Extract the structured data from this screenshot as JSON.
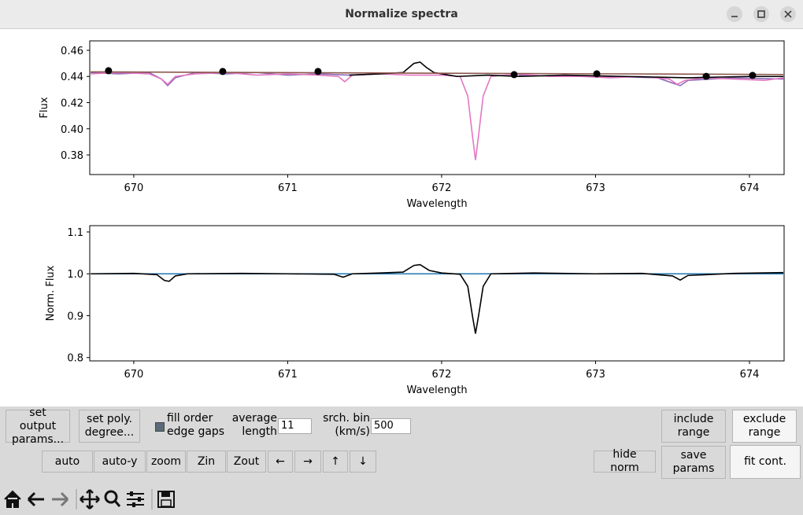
{
  "window": {
    "title": "Normalize spectra"
  },
  "chart_data": [
    {
      "type": "line",
      "ylabel": "Flux",
      "xlabel": "Wavelength",
      "xlim": [
        669.714,
        674.225
      ],
      "ylim": [
        0.365,
        0.4672
      ],
      "xticks": [
        670,
        671,
        672,
        673,
        674
      ],
      "yticks": [
        0.38,
        {
          "value": 0.4,
          "label": "0.40"
        },
        0.42,
        0.44,
        0.46
      ],
      "series": [
        {
          "color": "#8c6bb8",
          "x": [
            669.72,
            669.9,
            670.1,
            670.18,
            670.22,
            670.27,
            670.4,
            670.6,
            670.8,
            671.0,
            671.2,
            671.4,
            671.6,
            672.0,
            672.5,
            672.8,
            673.1,
            673.4,
            673.5,
            673.55,
            673.6,
            673.9,
            674.22
          ],
          "values": [
            0.443,
            0.442,
            0.443,
            0.438,
            0.433,
            0.439,
            0.443,
            0.442,
            0.443,
            0.441,
            0.442,
            0.441,
            0.442,
            null,
            0.441,
            0.44,
            0.44,
            0.439,
            0.435,
            0.433,
            0.437,
            0.439,
            0.438
          ]
        },
        {
          "color": "#e377c2",
          "x": [
            669.72,
            669.9,
            670.1,
            670.18,
            670.22,
            670.27,
            670.4,
            670.6,
            670.8,
            671.0,
            671.2,
            671.33,
            671.37,
            671.42,
            671.6,
            671.8,
            672.0,
            672.12,
            672.17,
            672.2,
            672.22,
            672.24,
            672.27,
            672.32,
            672.5,
            672.7,
            672.9,
            673.1,
            673.3,
            673.48,
            673.53,
            673.58,
            673.7,
            673.9,
            674.1,
            674.22
          ],
          "values": [
            0.442,
            0.443,
            0.442,
            0.438,
            0.434,
            0.44,
            0.442,
            0.443,
            0.441,
            0.442,
            0.441,
            0.44,
            0.436,
            0.441,
            0.442,
            0.441,
            0.441,
            0.44,
            0.425,
            0.395,
            0.376,
            0.395,
            0.425,
            0.44,
            0.442,
            0.44,
            0.44,
            0.439,
            0.44,
            0.438,
            0.434,
            0.437,
            0.439,
            0.438,
            0.437,
            0.439
          ]
        },
        {
          "color": "#000000",
          "x": [
            671.4,
            671.6,
            671.75,
            671.82,
            671.86,
            671.9,
            671.95,
            672.05,
            672.1,
            672.3,
            672.5,
            672.8,
            673.2,
            673.6,
            674.0,
            674.22
          ],
          "values": [
            0.441,
            0.442,
            0.443,
            0.45,
            0.451,
            0.447,
            0.443,
            0.441,
            0.44,
            0.441,
            0.44,
            0.441,
            0.44,
            0.439,
            0.44,
            0.44
          ]
        },
        {
          "color": "#8c564b",
          "x": [
            669.72,
            674.22
          ],
          "values": [
            0.4435,
            0.4415
          ]
        }
      ],
      "points": {
        "color": "#000000",
        "x": [
          669.836,
          670.578,
          671.197,
          672.471,
          673.008,
          673.719,
          674.02
        ],
        "values": [
          0.4444,
          0.4438,
          0.4438,
          0.4414,
          0.442,
          0.4401,
          0.4408
        ]
      }
    },
    {
      "type": "line",
      "ylabel": "Norm. Flux",
      "xlabel": "Wavelength",
      "xlim": [
        669.714,
        674.225
      ],
      "ylim": [
        0.792,
        1.115
      ],
      "xticks": [
        670,
        671,
        672,
        673,
        674
      ],
      "yticks": [
        0.8,
        0.9,
        {
          "value": 1.0,
          "label": "1.0"
        },
        1.1
      ],
      "series": [
        {
          "color": "#1f77b4",
          "x": [
            669.72,
            674.22
          ],
          "values": [
            1.0,
            1.0
          ]
        },
        {
          "color": "#000000",
          "x": [
            669.72,
            670.0,
            670.15,
            670.2,
            670.23,
            670.27,
            670.35,
            670.7,
            671.0,
            671.3,
            671.36,
            671.42,
            671.6,
            671.75,
            671.82,
            671.86,
            671.92,
            672.0,
            672.12,
            672.17,
            672.2,
            672.22,
            672.24,
            672.27,
            672.32,
            672.6,
            673.0,
            673.3,
            673.5,
            673.55,
            673.6,
            673.9,
            674.22
          ],
          "values": [
            1.0,
            1.001,
            0.998,
            0.984,
            0.982,
            0.995,
            1.0,
            1.001,
            1.0,
            0.999,
            0.992,
            1.0,
            1.002,
            1.004,
            1.02,
            1.022,
            1.008,
            1.002,
            0.999,
            0.97,
            0.9,
            0.857,
            0.9,
            0.97,
            1.0,
            1.002,
            1.0,
            1.001,
            0.995,
            0.985,
            0.996,
            1.001,
            1.003
          ]
        }
      ]
    }
  ],
  "controls": {
    "buttons": [
      "set output params...",
      "set poly. degree...",
      "include range",
      "exclude range",
      "auto",
      "auto-y",
      "zoom",
      "Zin",
      "Zout",
      "←",
      "→",
      "↑",
      "↓",
      "hide norm",
      "save params",
      "fit cont."
    ],
    "checkbox": "fill order edge gaps",
    "fields": [
      {
        "label": "average length",
        "value": 11
      },
      {
        "label": "srch. bin (km/s)",
        "value": 500
      }
    ]
  }
}
